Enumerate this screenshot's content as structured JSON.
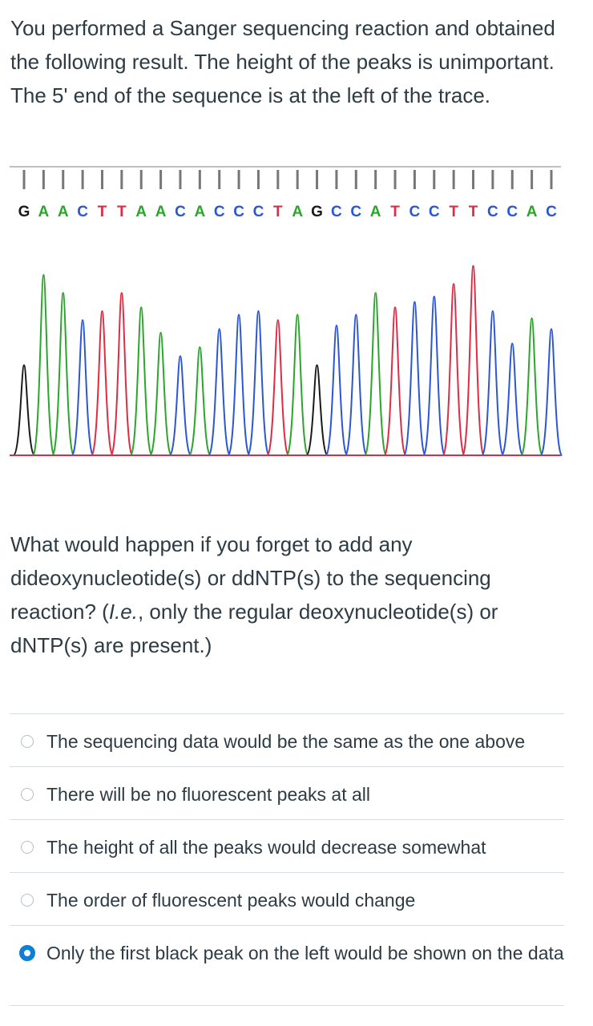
{
  "intro_text": "You performed a Sanger sequencing reaction and obtained the following result. The height of the peaks is unimportant. The 5' end of the sequence is at the left of the trace.",
  "trace": {
    "bases": [
      "G",
      "A",
      "A",
      "C",
      "T",
      "T",
      "A",
      "A",
      "C",
      "A",
      "C",
      "C",
      "C",
      "T",
      "A",
      "G",
      "C",
      "C",
      "A",
      "T",
      "C",
      "C",
      "T",
      "T",
      "C",
      "C",
      "A",
      "C"
    ],
    "base_colors": {
      "G": "#1a1a1a",
      "A": "#2aa62a",
      "C": "#2b56d6",
      "T": "#e02b45"
    }
  },
  "question": {
    "part1": "What would happen if you forget to add any dideoxynucleotide(s) or ddNTP(s) to the sequencing reaction? (",
    "italic": "I.e.",
    "part2": ", only the regular deoxynucleotide(s) or dNTP(s) are present.)"
  },
  "options": [
    {
      "label": "The sequencing data would be the same as the one above",
      "selected": false
    },
    {
      "label": "There will be no fluorescent peaks at all",
      "selected": false
    },
    {
      "label": "The height of all the peaks would decrease somewhat",
      "selected": false
    },
    {
      "label": "The order of fluorescent peaks would change",
      "selected": false
    },
    {
      "label": "Only the first black peak on the left would be shown on the data",
      "selected": true
    }
  ]
}
